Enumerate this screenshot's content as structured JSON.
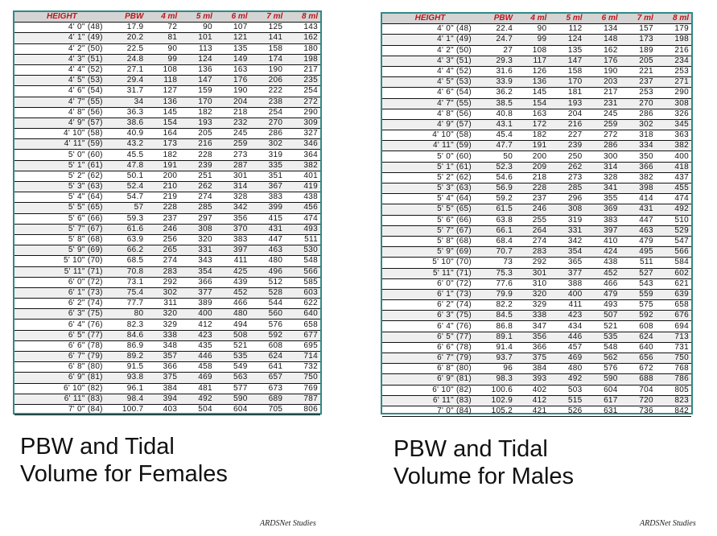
{
  "headers": [
    "HEIGHT",
    "PBW",
    "4 ml",
    "5 ml",
    "6 ml",
    "7 ml",
    "8 ml"
  ],
  "females": {
    "caption": "PBW and  Tidal\nVolume for Females",
    "source": "ARDSNet Studies",
    "rows": [
      [
        "4' 0\" (48)",
        "17.9",
        "72",
        "90",
        "107",
        "125",
        "143"
      ],
      [
        "4' 1\" (49)",
        "20.2",
        "81",
        "101",
        "121",
        "141",
        "162"
      ],
      [
        "4' 2\" (50)",
        "22.5",
        "90",
        "113",
        "135",
        "158",
        "180"
      ],
      [
        "4' 3\" (51)",
        "24.8",
        "99",
        "124",
        "149",
        "174",
        "198"
      ],
      [
        "4' 4\" (52)",
        "27.1",
        "108",
        "136",
        "163",
        "190",
        "217"
      ],
      [
        "4' 5\" (53)",
        "29.4",
        "118",
        "147",
        "176",
        "206",
        "235"
      ],
      [
        "4' 6\" (54)",
        "31.7",
        "127",
        "159",
        "190",
        "222",
        "254"
      ],
      [
        "4' 7\" (55)",
        "34",
        "136",
        "170",
        "204",
        "238",
        "272"
      ],
      [
        "4' 8\" (56)",
        "36.3",
        "145",
        "182",
        "218",
        "254",
        "290"
      ],
      [
        "4' 9\" (57)",
        "38.6",
        "154",
        "193",
        "232",
        "270",
        "309"
      ],
      [
        "4' 10\" (58)",
        "40.9",
        "164",
        "205",
        "245",
        "286",
        "327"
      ],
      [
        "4' 11\" (59)",
        "43.2",
        "173",
        "216",
        "259",
        "302",
        "346"
      ],
      [
        "5' 0\" (60)",
        "45.5",
        "182",
        "228",
        "273",
        "319",
        "364"
      ],
      [
        "5' 1\" (61)",
        "47.8",
        "191",
        "239",
        "287",
        "335",
        "382"
      ],
      [
        "5' 2\" (62)",
        "50.1",
        "200",
        "251",
        "301",
        "351",
        "401"
      ],
      [
        "5' 3\" (63)",
        "52.4",
        "210",
        "262",
        "314",
        "367",
        "419"
      ],
      [
        "5' 4\" (64)",
        "54.7",
        "219",
        "274",
        "328",
        "383",
        "438"
      ],
      [
        "5' 5\" (65)",
        "57",
        "228",
        "285",
        "342",
        "399",
        "456"
      ],
      [
        "5' 6\" (66)",
        "59.3",
        "237",
        "297",
        "356",
        "415",
        "474"
      ],
      [
        "5' 7\" (67)",
        "61.6",
        "246",
        "308",
        "370",
        "431",
        "493"
      ],
      [
        "5' 8\" (68)",
        "63.9",
        "256",
        "320",
        "383",
        "447",
        "511"
      ],
      [
        "5' 9\" (69)",
        "66.2",
        "265",
        "331",
        "397",
        "463",
        "530"
      ],
      [
        "5' 10\" (70)",
        "68.5",
        "274",
        "343",
        "411",
        "480",
        "548"
      ],
      [
        "5' 11\" (71)",
        "70.8",
        "283",
        "354",
        "425",
        "496",
        "566"
      ],
      [
        "6' 0\" (72)",
        "73.1",
        "292",
        "366",
        "439",
        "512",
        "585"
      ],
      [
        "6' 1\" (73)",
        "75.4",
        "302",
        "377",
        "452",
        "528",
        "603"
      ],
      [
        "6' 2\" (74)",
        "77.7",
        "311",
        "389",
        "466",
        "544",
        "622"
      ],
      [
        "6' 3\" (75)",
        "80",
        "320",
        "400",
        "480",
        "560",
        "640"
      ],
      [
        "6' 4\" (76)",
        "82.3",
        "329",
        "412",
        "494",
        "576",
        "658"
      ],
      [
        "6' 5\" (77)",
        "84.6",
        "338",
        "423",
        "508",
        "592",
        "677"
      ],
      [
        "6' 6\" (78)",
        "86.9",
        "348",
        "435",
        "521",
        "608",
        "695"
      ],
      [
        "6' 7\" (79)",
        "89.2",
        "357",
        "446",
        "535",
        "624",
        "714"
      ],
      [
        "6' 8\" (80)",
        "91.5",
        "366",
        "458",
        "549",
        "641",
        "732"
      ],
      [
        "6' 9\" (81)",
        "93.8",
        "375",
        "469",
        "563",
        "657",
        "750"
      ],
      [
        "6' 10\" (82)",
        "96.1",
        "384",
        "481",
        "577",
        "673",
        "769"
      ],
      [
        "6' 11\" (83)",
        "98.4",
        "394",
        "492",
        "590",
        "689",
        "787"
      ],
      [
        "7' 0\" (84)",
        "100.7",
        "403",
        "504",
        "604",
        "705",
        "806"
      ]
    ]
  },
  "males": {
    "caption": "PBW and Tidal\nVolume for Males",
    "source": "ARDSNet Studies",
    "rows": [
      [
        "4' 0\" (48)",
        "22.4",
        "90",
        "112",
        "134",
        "157",
        "179"
      ],
      [
        "4' 1\" (49)",
        "24.7",
        "99",
        "124",
        "148",
        "173",
        "198"
      ],
      [
        "4' 2\" (50)",
        "27",
        "108",
        "135",
        "162",
        "189",
        "216"
      ],
      [
        "4' 3\" (51)",
        "29.3",
        "117",
        "147",
        "176",
        "205",
        "234"
      ],
      [
        "4' 4\" (52)",
        "31.6",
        "126",
        "158",
        "190",
        "221",
        "253"
      ],
      [
        "4' 5\" (53)",
        "33.9",
        "136",
        "170",
        "203",
        "237",
        "271"
      ],
      [
        "4' 6\" (54)",
        "36.2",
        "145",
        "181",
        "217",
        "253",
        "290"
      ],
      [
        "4' 7\" (55)",
        "38.5",
        "154",
        "193",
        "231",
        "270",
        "308"
      ],
      [
        "4' 8\" (56)",
        "40.8",
        "163",
        "204",
        "245",
        "286",
        "326"
      ],
      [
        "4' 9\" (57)",
        "43.1",
        "172",
        "216",
        "259",
        "302",
        "345"
      ],
      [
        "4' 10\" (58)",
        "45.4",
        "182",
        "227",
        "272",
        "318",
        "363"
      ],
      [
        "4' 11\" (59)",
        "47.7",
        "191",
        "239",
        "286",
        "334",
        "382"
      ],
      [
        "5' 0\" (60)",
        "50",
        "200",
        "250",
        "300",
        "350",
        "400"
      ],
      [
        "5' 1\" (61)",
        "52.3",
        "209",
        "262",
        "314",
        "366",
        "418"
      ],
      [
        "5' 2\" (62)",
        "54.6",
        "218",
        "273",
        "328",
        "382",
        "437"
      ],
      [
        "5' 3\" (63)",
        "56.9",
        "228",
        "285",
        "341",
        "398",
        "455"
      ],
      [
        "5' 4\" (64)",
        "59.2",
        "237",
        "296",
        "355",
        "414",
        "474"
      ],
      [
        "5' 5\" (65)",
        "61.5",
        "246",
        "308",
        "369",
        "431",
        "492"
      ],
      [
        "5' 6\" (66)",
        "63.8",
        "255",
        "319",
        "383",
        "447",
        "510"
      ],
      [
        "5' 7\" (67)",
        "66.1",
        "264",
        "331",
        "397",
        "463",
        "529"
      ],
      [
        "5' 8\" (68)",
        "68.4",
        "274",
        "342",
        "410",
        "479",
        "547"
      ],
      [
        "5' 9\" (69)",
        "70.7",
        "283",
        "354",
        "424",
        "495",
        "566"
      ],
      [
        "5' 10\" (70)",
        "73",
        "292",
        "365",
        "438",
        "511",
        "584"
      ],
      [
        "5' 11\" (71)",
        "75.3",
        "301",
        "377",
        "452",
        "527",
        "602"
      ],
      [
        "6' 0\" (72)",
        "77.6",
        "310",
        "388",
        "466",
        "543",
        "621"
      ],
      [
        "6' 1\" (73)",
        "79.9",
        "320",
        "400",
        "479",
        "559",
        "639"
      ],
      [
        "6' 2\" (74)",
        "82.2",
        "329",
        "411",
        "493",
        "575",
        "658"
      ],
      [
        "6' 3\" (75)",
        "84.5",
        "338",
        "423",
        "507",
        "592",
        "676"
      ],
      [
        "6' 4\" (76)",
        "86.8",
        "347",
        "434",
        "521",
        "608",
        "694"
      ],
      [
        "6' 5\" (77)",
        "89.1",
        "356",
        "446",
        "535",
        "624",
        "713"
      ],
      [
        "6' 6\" (78)",
        "91.4",
        "366",
        "457",
        "548",
        "640",
        "731"
      ],
      [
        "6' 7\" (79)",
        "93.7",
        "375",
        "469",
        "562",
        "656",
        "750"
      ],
      [
        "6' 8\" (80)",
        "96",
        "384",
        "480",
        "576",
        "672",
        "768"
      ],
      [
        "6' 9\" (81)",
        "98.3",
        "393",
        "492",
        "590",
        "688",
        "786"
      ],
      [
        "6' 10\" (82)",
        "100.6",
        "402",
        "503",
        "604",
        "704",
        "805"
      ],
      [
        "6' 11\" (83)",
        "102.9",
        "412",
        "515",
        "617",
        "720",
        "823"
      ],
      [
        "7' 0\" (84)",
        "105.2",
        "421",
        "526",
        "631",
        "736",
        "842"
      ]
    ]
  }
}
